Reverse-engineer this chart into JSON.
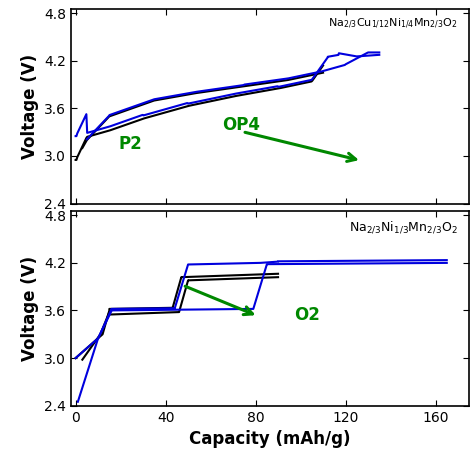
{
  "xlabel": "Capacity (mAh/g)",
  "ylabel": "Voltage (V)",
  "ylim": [
    2.4,
    4.85
  ],
  "xlim": [
    -2,
    175
  ],
  "yticks": [
    2.4,
    3.0,
    3.6,
    4.2,
    4.8
  ],
  "xticks": [
    0,
    40,
    80,
    120,
    160
  ],
  "blue_color": "#0000DD",
  "black_color": "#000000",
  "green_color": "#008800",
  "fig_width": 4.74,
  "fig_height": 4.61,
  "dpi": 100
}
